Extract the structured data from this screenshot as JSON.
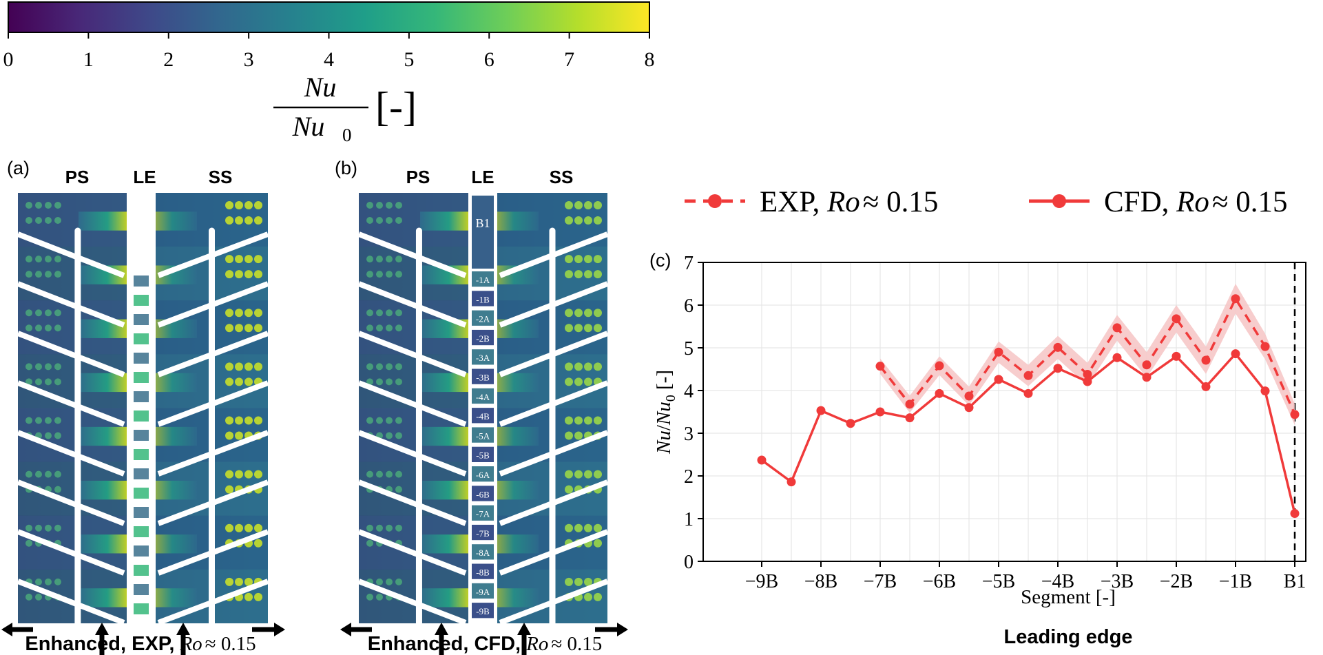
{
  "colorbar": {
    "ticks": [
      "0",
      "1",
      "2",
      "3",
      "4",
      "5",
      "6",
      "7",
      "8"
    ],
    "label_num": "Nu",
    "label_den": "Nu",
    "label_den_sub": "0",
    "label_unit": "[-]",
    "colors": [
      "#440154",
      "#482878",
      "#3e4989",
      "#31688e",
      "#26828e",
      "#1f9e89",
      "#35b779",
      "#6ece58",
      "#b5de2b",
      "#fde725"
    ]
  },
  "panel_a": {
    "letter": "(a)",
    "labels": [
      "PS",
      "LE",
      "SS"
    ],
    "caption_main": "Enhanced, EXP,",
    "caption_ro": "Ro",
    "caption_val": "≈ 0.15"
  },
  "panel_b": {
    "letter": "(b)",
    "labels": [
      "PS",
      "LE",
      "SS"
    ],
    "le_top": "B1",
    "le_segments": [
      "-1A",
      "-1B",
      "-2A",
      "-2B",
      "-3A",
      "-3B",
      "-4A",
      "-4B",
      "-5A",
      "-5B",
      "-6A",
      "-6B",
      "-7A",
      "-7B",
      "-8A",
      "-8B",
      "-9A",
      "-9B"
    ],
    "caption_main": "Enhanced, CFD,",
    "caption_ro": "Ro",
    "caption_val": "≈ 0.15"
  },
  "chart_data": {
    "type": "line",
    "panel_letter": "(c)",
    "title": "Leading edge",
    "xlabel": "Segment [-]",
    "ylabel": "Nu/Nu0 [-]",
    "ylim": [
      0,
      7
    ],
    "yticks": [
      "0",
      "1",
      "2",
      "3",
      "4",
      "5",
      "6",
      "7"
    ],
    "xticks": [
      "−9B",
      "−8B",
      "−7B",
      "−6B",
      "−5B",
      "−4B",
      "−3B",
      "−2B",
      "−1B",
      "B1"
    ],
    "grid": true,
    "legend_position": "top",
    "vline_at": "B1",
    "series": [
      {
        "name": "EXP, Ro ≈ 0.15",
        "style": "dashed",
        "color": "#f03a3a",
        "band_color": "#f6c4c4",
        "x": [
          "-7B",
          "-6A",
          "-6B",
          "-5A",
          "-5B",
          "-4A",
          "-4B",
          "-3A",
          "-3B",
          "-2A",
          "-2B",
          "-1A",
          "-1B",
          "B2",
          "B1"
        ],
        "values": [
          4.57,
          3.68,
          4.58,
          3.87,
          4.9,
          4.35,
          5.01,
          4.38,
          5.47,
          4.6,
          5.68,
          4.71,
          6.15,
          5.03,
          3.44
        ],
        "band": [
          0.18,
          0.2,
          0.22,
          0.22,
          0.25,
          0.25,
          0.27,
          0.27,
          0.3,
          0.3,
          0.32,
          0.32,
          0.35,
          0.3,
          0.25
        ]
      },
      {
        "name": "CFD, Ro ≈ 0.15",
        "style": "solid",
        "color": "#f03a3a",
        "x": [
          "-9B",
          "-8A",
          "-8B",
          "-7A",
          "-7B",
          "-6A",
          "-6B",
          "-5A",
          "-5B",
          "-4A",
          "-4B",
          "-3A",
          "-3B",
          "-2A",
          "-2B",
          "-1A",
          "-1B",
          "B2",
          "B1"
        ],
        "values": [
          2.37,
          1.86,
          3.53,
          3.23,
          3.5,
          3.36,
          3.93,
          3.6,
          4.26,
          3.93,
          4.52,
          4.21,
          4.77,
          4.31,
          4.8,
          4.09,
          4.86,
          3.99,
          1.12
        ]
      }
    ],
    "legend": [
      {
        "prefix": "EXP, ",
        "ro": "Ro",
        "suffix": "≈ 0.15"
      },
      {
        "prefix": "CFD, ",
        "ro": "Ro",
        "suffix": "≈ 0.15"
      }
    ]
  }
}
